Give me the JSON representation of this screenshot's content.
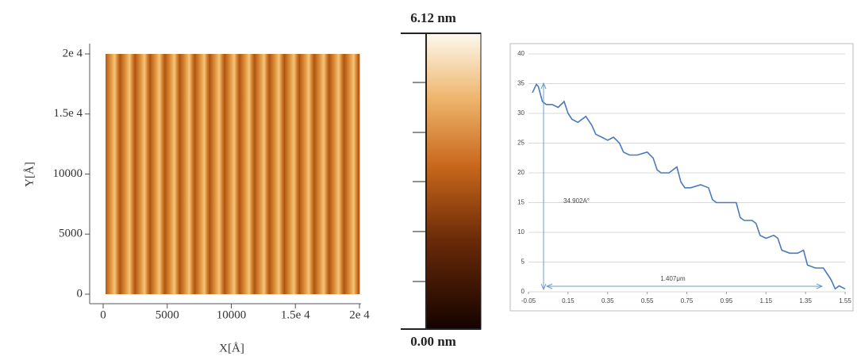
{
  "chart_data": [
    {
      "type": "image",
      "x_label": "X[Å]",
      "y_label": "Y[Å]",
      "xlim": [
        0,
        20000
      ],
      "xticks": [
        0,
        5000,
        10000,
        {
          "value": 15000,
          "label": "1.5e 4"
        },
        {
          "value": 20000,
          "label": "2e 4"
        }
      ],
      "ylim": [
        0,
        20000
      ],
      "yticks": [
        0,
        5000,
        10000,
        {
          "value": 15000,
          "label": "1.5e 4"
        },
        {
          "value": 20000,
          "label": "2e 4"
        }
      ]
    },
    {
      "type": "colorbar",
      "clim": [
        0,
        6.12
      ],
      "cticks": [
        {
          "value": 0,
          "label": "0.00 nm"
        },
        {
          "value": 6.12,
          "label": "6.12 nm"
        }
      ]
    },
    {
      "type": "line",
      "color": "#4a7ab8",
      "grid": true,
      "x": [
        -0.03,
        -0.01,
        0.0,
        0.02,
        0.04,
        0.07,
        0.1,
        0.13,
        0.15,
        0.17,
        0.2,
        0.24,
        0.27,
        0.29,
        0.32,
        0.35,
        0.38,
        0.41,
        0.43,
        0.46,
        0.5,
        0.55,
        0.58,
        0.6,
        0.62,
        0.66,
        0.7,
        0.72,
        0.74,
        0.77,
        0.82,
        0.86,
        0.88,
        0.9,
        0.95,
        1.0,
        1.02,
        1.04,
        1.08,
        1.1,
        1.12,
        1.15,
        1.19,
        1.21,
        1.23,
        1.27,
        1.31,
        1.34,
        1.36,
        1.4,
        1.44,
        1.46,
        1.48,
        1.5,
        1.52,
        1.55
      ],
      "values": [
        33.5,
        34.9,
        34.5,
        32,
        31.5,
        31.5,
        31,
        32,
        30,
        29,
        28.5,
        29.5,
        28,
        26.5,
        26,
        25.5,
        26,
        25,
        23.5,
        23,
        23,
        23.5,
        22.5,
        20.5,
        20,
        20,
        21,
        18.5,
        17.5,
        17.5,
        18,
        17.5,
        15.5,
        15,
        15,
        15,
        12.5,
        12,
        12,
        11.5,
        9.5,
        9,
        9.5,
        9,
        7,
        6.5,
        6.5,
        7,
        4.5,
        4,
        4,
        3,
        2,
        0.5,
        1,
        0.5
      ],
      "xlim": [
        -0.05,
        1.55
      ],
      "xticks": [
        -0.05,
        0.15,
        0.35,
        0.55,
        0.75,
        0.95,
        1.15,
        1.35,
        1.55
      ],
      "ylim": [
        0,
        40
      ],
      "yticks": [
        0,
        5,
        10,
        15,
        20,
        25,
        30,
        35,
        40
      ],
      "annotations": [
        "34.902A°",
        "1.407μm"
      ]
    }
  ]
}
